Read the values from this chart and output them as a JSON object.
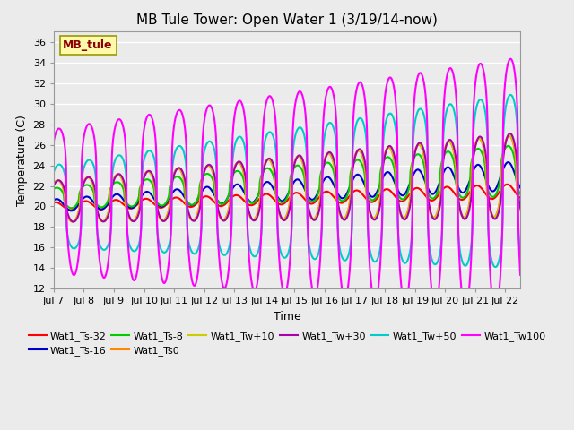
{
  "title": "MB Tule Tower: Open Water 1 (3/19/14-now)",
  "xlabel": "Time",
  "ylabel": "Temperature (C)",
  "xlim": [
    0,
    15.5
  ],
  "ylim": [
    12,
    37
  ],
  "yticks": [
    12,
    14,
    16,
    18,
    20,
    22,
    24,
    26,
    28,
    30,
    32,
    34,
    36
  ],
  "xtick_labels": [
    "Jul 7",
    "Jul 8",
    "Jul 9",
    "Jul 10",
    "Jul 11",
    "Jul 12",
    "Jul 13",
    "Jul 14",
    "Jul 15",
    "Jul 16",
    "Jul 17",
    "Jul 18",
    "Jul 19",
    "Jul 20",
    "Jul 21",
    "Jul 22"
  ],
  "xtick_positions": [
    0,
    1,
    2,
    3,
    4,
    5,
    6,
    7,
    8,
    9,
    10,
    11,
    12,
    13,
    14,
    15
  ],
  "station_label": "MB_tule",
  "station_label_color": "#8B0000",
  "station_box_color": "#FFFAAA",
  "background_color": "#EBEBEB",
  "grid_color": "#FFFFFF",
  "series": {
    "Wat1_Ts-32": {
      "color": "#FF0000",
      "lw": 1.5
    },
    "Wat1_Ts-16": {
      "color": "#0000CC",
      "lw": 1.5
    },
    "Wat1_Ts-8": {
      "color": "#00CC00",
      "lw": 1.5
    },
    "Wat1_Ts0": {
      "color": "#FF8800",
      "lw": 1.5
    },
    "Wat1_Tw+10": {
      "color": "#CCCC00",
      "lw": 1.5
    },
    "Wat1_Tw+30": {
      "color": "#AA00AA",
      "lw": 1.5
    },
    "Wat1_Tw+50": {
      "color": "#00CCCC",
      "lw": 1.5
    },
    "Wat1_Tw100": {
      "color": "#FF00FF",
      "lw": 1.5
    }
  },
  "title_fontsize": 11,
  "axis_label_fontsize": 9,
  "tick_fontsize": 8,
  "legend_fontsize": 8
}
